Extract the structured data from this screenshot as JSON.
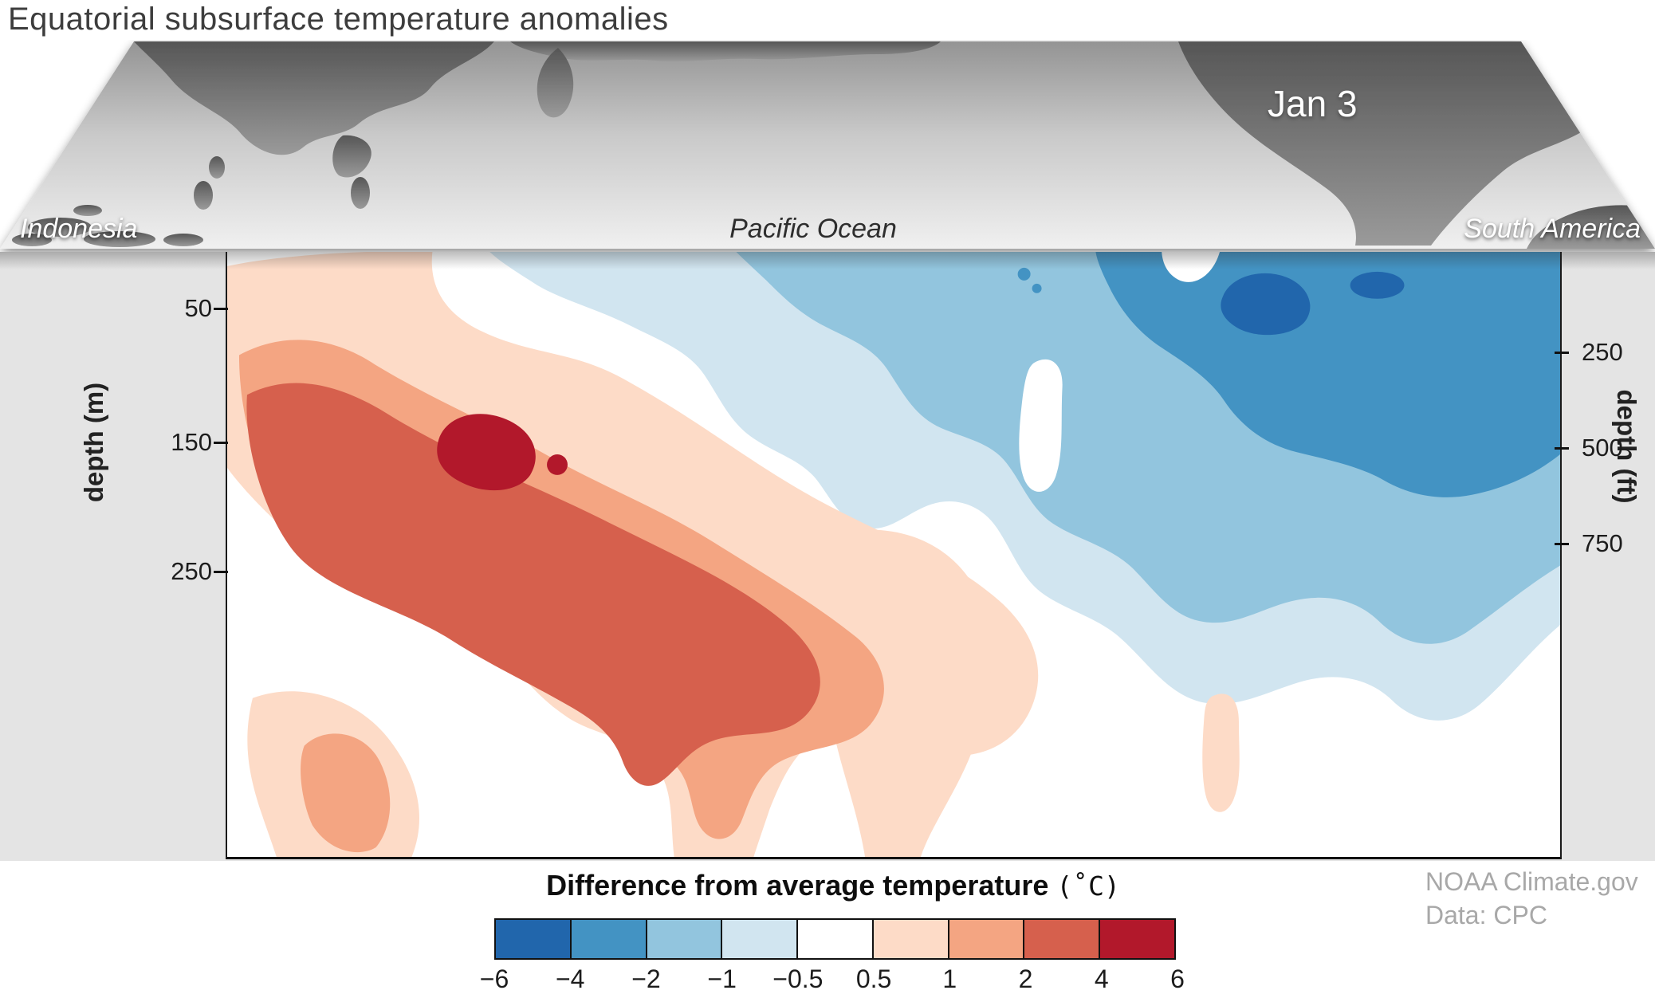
{
  "title": "Equatorial subsurface temperature anomalies",
  "map": {
    "date_label": "Jan 3",
    "region_labels": [
      "Indonesia",
      "Pacific Ocean",
      "South America"
    ]
  },
  "credits": {
    "line1": "NOAA Climate.gov",
    "line2": "Data: CPC"
  },
  "chart_data": {
    "type": "contour",
    "title": "Equatorial subsurface temperature anomalies",
    "date": "Jan 3",
    "x_axis": {
      "labels": [
        "Indonesia",
        "Pacific Ocean",
        "South America"
      ],
      "description": "Longitude section across the equatorial Pacific Ocean, west (Indonesia) to east (South America)"
    },
    "y_axis_left": {
      "label": "depth (m)",
      "ticks": [
        "50",
        "150",
        "250"
      ]
    },
    "y_axis_right": {
      "label": "depth (ft)",
      "ticks": [
        "250",
        "500",
        "750"
      ]
    },
    "colorbar": {
      "label": "Difference from average temperature",
      "unit": "(˚C)",
      "boundaries": [
        -6,
        -4,
        -2,
        -1,
        -0.5,
        0.5,
        1,
        2,
        4,
        6
      ],
      "tick_labels": [
        "−6",
        "−4",
        "−2",
        "−1",
        "−0.5",
        "0.5",
        "1",
        "2",
        "4",
        "6"
      ],
      "colors": [
        "#2166ac",
        "#4393c3",
        "#92c5de",
        "#d1e5f0",
        "#ffffff",
        "#fddbc7",
        "#f4a582",
        "#d6604d",
        "#b2182b"
      ]
    },
    "features": [
      {
        "region": "west-central equatorial Pacific, subsurface",
        "sign": "warm",
        "max_anomaly_c": 6,
        "depth_range_m": [
          50,
          250
        ],
        "description": "Warm anomaly band sloping from ~75 m depth in the west down to ~150-200 m in the central Pacific; core exceeding +4 °C near 150 m"
      },
      {
        "region": "eastern equatorial Pacific, near surface",
        "sign": "cold",
        "min_anomaly_c": -6,
        "depth_range_m": [
          0,
          150
        ],
        "description": "Cold anomaly in the upper ~150 m of the eastern Pacific, strongest (below −4 °C) near the surface close to South America"
      }
    ],
    "source": "NOAA Climate.gov",
    "data_source": "Data: CPC"
  }
}
